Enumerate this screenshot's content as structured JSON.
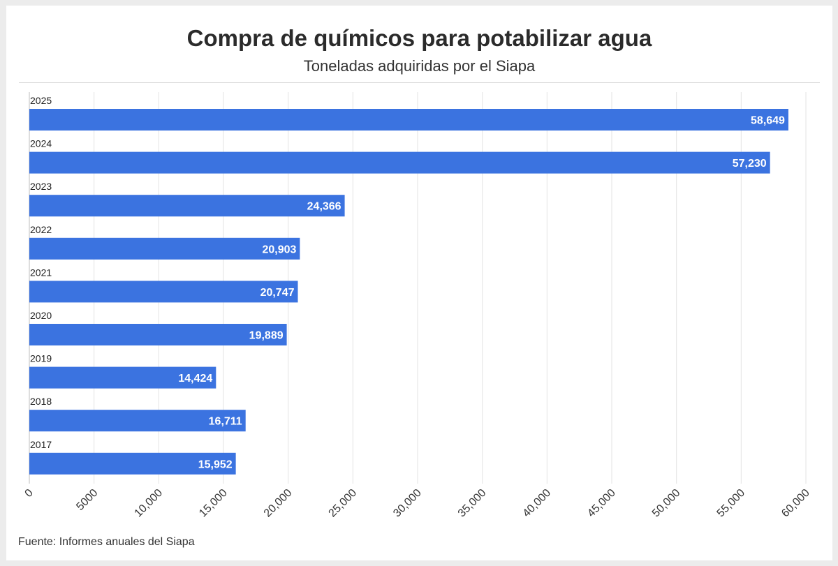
{
  "chart_data": {
    "type": "bar",
    "orientation": "horizontal",
    "title": "Compra de químicos para potabilizar agua",
    "subtitle": "Toneladas adquiridas por el Siapa",
    "source": "Fuente: Informes anuales del Siapa",
    "categories": [
      "2025",
      "2024",
      "2023",
      "2022",
      "2021",
      "2020",
      "2019",
      "2018",
      "2017"
    ],
    "values": [
      58649,
      57230,
      24366,
      20903,
      20747,
      19889,
      14424,
      16711,
      15952
    ],
    "value_labels": [
      "58,649",
      "57,230",
      "24,366",
      "20,903",
      "20,747",
      "19,889",
      "14,424",
      "16,711",
      "15,952"
    ],
    "xlim": [
      0,
      60000
    ],
    "xticks": [
      0,
      5000,
      10000,
      15000,
      20000,
      25000,
      30000,
      35000,
      40000,
      45000,
      50000,
      55000,
      60000
    ],
    "xtick_labels": [
      "0",
      "5000",
      "10,000",
      "15,000",
      "20,000",
      "25,000",
      "30,000",
      "35,000",
      "40,000",
      "45,000",
      "50,000",
      "55,000",
      "60,000"
    ],
    "grid": true,
    "bar_color": "#3b73e0"
  }
}
